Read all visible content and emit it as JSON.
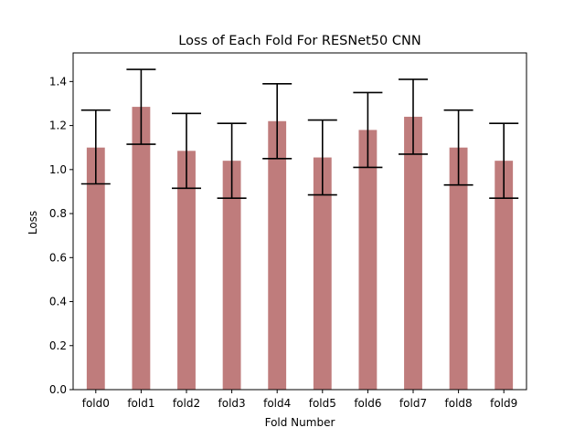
{
  "chart_data": {
    "type": "bar",
    "title": "Loss of Each Fold For RESNet50 CNN",
    "xlabel": "Fold Number",
    "ylabel": "Loss",
    "categories": [
      "fold0",
      "fold1",
      "fold2",
      "fold3",
      "fold4",
      "fold5",
      "fold6",
      "fold7",
      "fold8",
      "fold9"
    ],
    "values": [
      1.1,
      1.285,
      1.085,
      1.04,
      1.22,
      1.055,
      1.18,
      1.24,
      1.1,
      1.04
    ],
    "error_low": [
      0.935,
      1.115,
      0.915,
      0.87,
      1.05,
      0.885,
      1.01,
      1.07,
      0.93,
      0.87
    ],
    "error_high": [
      1.27,
      1.455,
      1.255,
      1.21,
      1.39,
      1.225,
      1.35,
      1.41,
      1.27,
      1.21
    ],
    "ylim": [
      0,
      1.53
    ],
    "yticks": [
      "0.0",
      "0.2",
      "0.4",
      "0.6",
      "0.8",
      "1.0",
      "1.2",
      "1.4"
    ],
    "grid": false,
    "colors": {
      "bar": "#bf7c7c",
      "error": "#000000",
      "axis": "#000000"
    }
  }
}
